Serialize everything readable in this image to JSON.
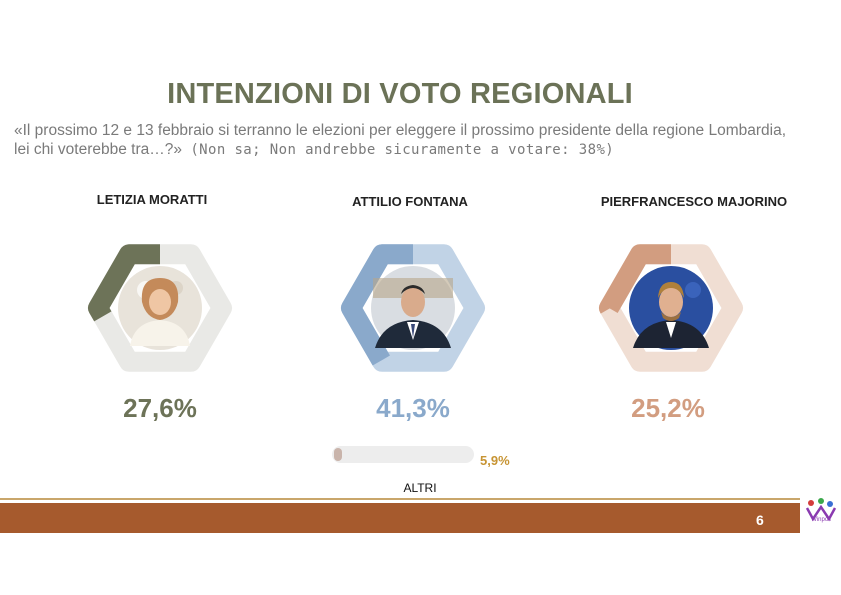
{
  "title": "INTENZIONI DI VOTO REGIONALI",
  "question": "«Il prossimo 12 e 13 febbraio si terranno le elezioni per eleggere il prossimo presidente della regione Lombardia, lei chi voterebbe tra…?»",
  "note": "(Non sa; Non andrebbe sicuramente a votare: 38%)",
  "chart_data": {
    "type": "bar",
    "categories": [
      "LETIZIA MORATTI",
      "ATTILIO FONTANA",
      "PIERFRANCESCO MAJORINO",
      "ALTRI"
    ],
    "values": [
      27.6,
      41.3,
      25.2,
      5.9
    ],
    "value_labels": [
      "27,6%",
      "41,3%",
      "25,2%",
      "5,9%"
    ],
    "unit": "%",
    "colors": [
      "#6d7358",
      "#8aa9cb",
      "#d29d80",
      "#c9b4ab"
    ]
  },
  "candidates": [
    {
      "name": "LETIZIA MORATTI",
      "pct_label": "27,6%",
      "value": 27.6,
      "ring_color": "#6d7358",
      "track_color": "#e9e9e6",
      "pct_color": "#6d7358"
    },
    {
      "name": "ATTILIO FONTANA",
      "pct_label": "41,3%",
      "value": 41.3,
      "ring_color": "#8aa9cb",
      "track_color": "#c1d3e6",
      "pct_color": "#8aa9cb"
    },
    {
      "name": "PIERFRANCESCO MAJORINO",
      "pct_label": "25,2%",
      "value": 25.2,
      "ring_color": "#d29d80",
      "track_color": "#f0ded3",
      "pct_color": "#d29d80"
    }
  ],
  "others": {
    "label": "ALTRI",
    "pct_label": "5,9%",
    "value": 5.9
  },
  "footer": {
    "page_number": "6",
    "logo_text": "Winpoll"
  }
}
